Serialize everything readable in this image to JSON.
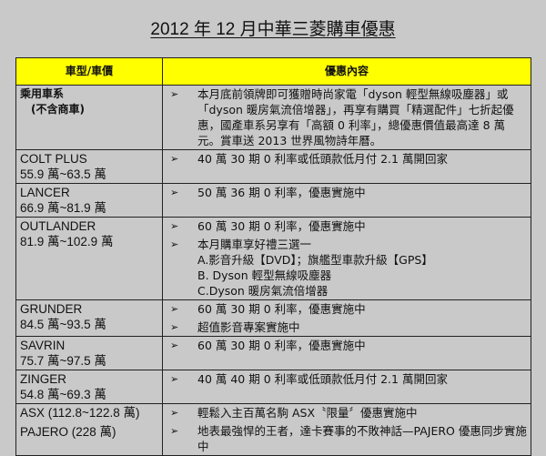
{
  "title": "2012 年 12 月中華三菱購車優惠",
  "header": {
    "col1": "車型/車價",
    "col2": "優惠內容"
  },
  "rows": [
    {
      "model": "乘用車系",
      "price": "(不含商車)",
      "items": [
        "本月底前領牌即可獲贈時尚家電「dyson 輕型無線吸塵器」或「dyson 暖房氣流倍增器」，再享有購買「精選配件」七折起優惠，國產車系另享有「高額 0 利率」，總優惠價值最高達 8 萬元。賞車送 2013 世界風物詩年曆。"
      ],
      "subitems": []
    },
    {
      "model": "COLT PLUS",
      "price": "55.9 萬~63.5 萬",
      "items": [
        "40 萬 30 期 0 利率或低頭款低月付 2.1 萬開回家"
      ],
      "subitems": []
    },
    {
      "model": "LANCER",
      "price": "66.9 萬~81.9 萬",
      "items": [
        "50 萬 36 期 0 利率，優惠實施中"
      ],
      "subitems": []
    },
    {
      "model": "OUTLANDER",
      "price": "81.9 萬~102.9 萬",
      "items": [
        "60 萬 30 期 0 利率，優惠實施中",
        "本月購車享好禮三選一"
      ],
      "subitems": [
        "A.影音升級【DVD】；旗艦型車款升級【GPS】",
        "B. Dyson 輕型無線吸塵器",
        "C.Dyson 暖房氣流倍增器"
      ]
    },
    {
      "model": "GRUNDER",
      "price": "84.5 萬~93.5 萬",
      "items": [
        "60 萬 30 期 0 利率，優惠實施中",
        "超值影音專案實施中"
      ],
      "subitems": []
    },
    {
      "model": "SAVRIN",
      "price": "75.7 萬~97.5 萬",
      "items": [
        "60 萬 30 期 0 利率，優惠實施中"
      ],
      "subitems": []
    },
    {
      "model": "ZINGER",
      "price": "54.8 萬~69.3 萬",
      "items": [
        "40 萬 40 期 0 利率或低頭款低月付 2.1 萬開回家"
      ],
      "subitems": []
    },
    {
      "model": "ASX (112.8~122.8 萬)",
      "price": "PAJERO (228 萬)",
      "items": [
        "輕鬆入主百萬名駒 ASX〝限量〞優惠實施中",
        "地表最強悍的王者，達卡賽事的不敗神話—PAJERO 優惠同步實施中"
      ],
      "subitems": []
    }
  ]
}
